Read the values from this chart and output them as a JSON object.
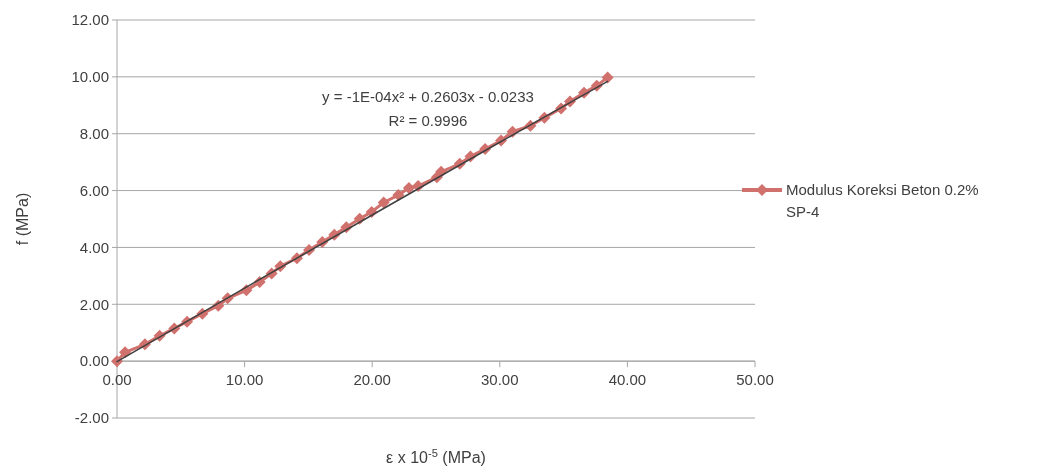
{
  "chart_data": {
    "type": "line",
    "xlabel": "ε x 10$^{-5}$ (MPa)",
    "ylabel": "f (MPa)",
    "xlim": [
      0,
      50
    ],
    "xticks": [
      {
        "value": 0,
        "label": "0.00"
      },
      {
        "value": 10,
        "label": "10.00"
      },
      {
        "value": 20,
        "label": "20.00"
      },
      {
        "value": 30,
        "label": "30.00"
      },
      {
        "value": 40,
        "label": "40.00"
      },
      {
        "value": 50,
        "label": "50.00"
      }
    ],
    "ylim": [
      -2,
      12
    ],
    "yticks": [
      {
        "value": -2,
        "label": "-2.00"
      },
      {
        "value": 0,
        "label": "0.00"
      },
      {
        "value": 2,
        "label": "2.00"
      },
      {
        "value": 4,
        "label": "4.00"
      },
      {
        "value": 6,
        "label": "6.00"
      },
      {
        "value": 8,
        "label": "8.00"
      },
      {
        "value": 10,
        "label": "10.00"
      },
      {
        "value": 12,
        "label": "12.00"
      }
    ],
    "grid": "y",
    "legend": "right",
    "marker": "diamond",
    "line_style": "solid",
    "annotations": [
      "y = -1E-04x² + 0.2603x - 0.0233",
      "R² = 0.9996"
    ],
    "series": [
      {
        "name": "Modulus Koreksi Beton 0.2% SP-4",
        "color": "#d0716d",
        "x": [
          0,
          0.63,
          2.19,
          3.34,
          4.49,
          5.49,
          6.69,
          7.94,
          8.67,
          10.14,
          11.18,
          12.12,
          12.8,
          14.1,
          15.05,
          16.09,
          17.03,
          17.97,
          19.02,
          19.96,
          20.9,
          22.05,
          22.88,
          23.6,
          25.07,
          25.4,
          26.86,
          27.7,
          28.85,
          30.1,
          31.0,
          32.4,
          33.5,
          34.8,
          35.5,
          36.6,
          37.6,
          38.45
        ],
        "values": [
          0,
          0.31,
          0.59,
          0.89,
          1.15,
          1.39,
          1.67,
          1.95,
          2.21,
          2.49,
          2.78,
          3.08,
          3.34,
          3.62,
          3.91,
          4.19,
          4.45,
          4.71,
          5.01,
          5.25,
          5.58,
          5.84,
          6.09,
          6.16,
          6.47,
          6.66,
          6.94,
          7.2,
          7.46,
          7.76,
          8.07,
          8.28,
          8.56,
          8.89,
          9.13,
          9.44,
          9.69,
          9.98
        ]
      },
      {
        "type": "line",
        "color": "#404040",
        "marker": "none",
        "x": [
          0,
          10,
          20,
          30,
          38.45
        ],
        "values": [
          -0.02,
          2.57,
          5.14,
          7.7,
          9.84
        ]
      }
    ]
  }
}
